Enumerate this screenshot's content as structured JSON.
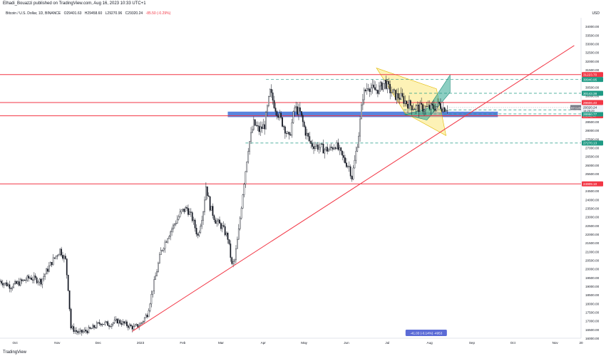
{
  "header": {
    "published_by": "Elhadi_Bouazzi published on TradingView.com, Aug 16, 2023 10:33 UTC+1",
    "symbol_title": "Bitcoin / U.S. Dollar, 1D, BINANCE",
    "o": "O29401.63",
    "h": "H29458.60",
    "l": "L29270.96",
    "c": "C29320.24",
    "chg": "-85.50 (-0.29%)",
    "currency": "USD"
  },
  "footer": {
    "logo_text": "TradingView"
  },
  "colors": {
    "up": "#089981",
    "down": "#f23645",
    "hline": "#f23645",
    "trend": "#f23645",
    "support_zone": "#3d6fd6",
    "flag_yellow": "#fbe77a",
    "flag_teal": "#3fae9a",
    "dash": "#1f9a84"
  },
  "chart_data": {
    "type": "candlestick",
    "symbol": "BTCUSD",
    "ylim": [
      16000,
      34500
    ],
    "y_ticks": [
      16000,
      16500,
      17000,
      17500,
      18000,
      18500,
      19000,
      19500,
      20000,
      20500,
      21000,
      21500,
      22000,
      22500,
      23000,
      23500,
      24000,
      24500,
      25000,
      25500,
      26000,
      26500,
      27000,
      27500,
      28000,
      28500,
      29000,
      29500,
      30000,
      30500,
      31000,
      31500,
      32000,
      32500,
      33000,
      33500,
      34000
    ],
    "x_labels": [
      {
        "label": "Oct",
        "day": 11
      },
      {
        "label": "Nov",
        "day": 42
      },
      {
        "label": "Dec",
        "day": 72
      },
      {
        "label": "2023",
        "day": 103
      },
      {
        "label": "Feb",
        "day": 134
      },
      {
        "label": "Mar",
        "day": 162
      },
      {
        "label": "Apr",
        "day": 193
      },
      {
        "label": "May",
        "day": 223
      },
      {
        "label": "Jun",
        "day": 254
      },
      {
        "label": "Jul",
        "day": 284
      },
      {
        "label": "Aug",
        "day": 315
      },
      {
        "label": "Sep",
        "day": 346
      },
      {
        "label": "Oct",
        "day": 376
      },
      {
        "label": "Nov",
        "day": 407
      },
      {
        "label": "20",
        "day": 426
      }
    ],
    "path_points": [
      [
        0,
        19300
      ],
      [
        8,
        19000
      ],
      [
        14,
        19200
      ],
      [
        22,
        19500
      ],
      [
        30,
        19300
      ],
      [
        38,
        20400
      ],
      [
        44,
        21100
      ],
      [
        48,
        20500
      ],
      [
        50,
        18900
      ],
      [
        52,
        16600
      ],
      [
        58,
        16300
      ],
      [
        66,
        16500
      ],
      [
        74,
        16900
      ],
      [
        80,
        16800
      ],
      [
        86,
        17000
      ],
      [
        92,
        16800
      ],
      [
        98,
        16600
      ],
      [
        103,
        16800
      ],
      [
        108,
        17400
      ],
      [
        113,
        19200
      ],
      [
        118,
        21000
      ],
      [
        123,
        21900
      ],
      [
        128,
        22600
      ],
      [
        133,
        23300
      ],
      [
        137,
        23500
      ],
      [
        141,
        22900
      ],
      [
        145,
        21900
      ],
      [
        149,
        23400
      ],
      [
        151,
        24800
      ],
      [
        154,
        23600
      ],
      [
        158,
        22800
      ],
      [
        163,
        22400
      ],
      [
        167,
        21800
      ],
      [
        170,
        20200
      ],
      [
        172,
        20500
      ],
      [
        175,
        22200
      ],
      [
        178,
        24400
      ],
      [
        182,
        27000
      ],
      [
        186,
        28400
      ],
      [
        190,
        28000
      ],
      [
        194,
        28300
      ],
      [
        198,
        30200
      ],
      [
        202,
        29300
      ],
      [
        206,
        28600
      ],
      [
        209,
        28100
      ],
      [
        212,
        27500
      ],
      [
        216,
        29300
      ],
      [
        220,
        29000
      ],
      [
        224,
        27900
      ],
      [
        228,
        27200
      ],
      [
        232,
        27100
      ],
      [
        238,
        26900
      ],
      [
        242,
        26900
      ],
      [
        246,
        27200
      ],
      [
        250,
        26600
      ],
      [
        253,
        26200
      ],
      [
        256,
        25900
      ],
      [
        258,
        25300
      ],
      [
        260,
        26200
      ],
      [
        263,
        27800
      ],
      [
        266,
        30000
      ],
      [
        270,
        30600
      ],
      [
        274,
        30300
      ],
      [
        278,
        30400
      ],
      [
        282,
        30800
      ],
      [
        286,
        30300
      ],
      [
        290,
        30000
      ],
      [
        294,
        29900
      ],
      [
        298,
        29600
      ],
      [
        302,
        29400
      ],
      [
        306,
        29300
      ],
      [
        310,
        29300
      ],
      [
        314,
        29300
      ],
      [
        318,
        29300
      ],
      [
        322,
        29500
      ],
      [
        325,
        29300
      ],
      [
        328,
        29320
      ]
    ],
    "horizontal_levels": [
      {
        "value": 31223.7,
        "label": "31223.70"
      },
      {
        "value": 29606.4,
        "label": "29606.40"
      },
      {
        "value": 28842.47,
        "label": "28842.47"
      },
      {
        "value": 24909.1,
        "label": "24909.10"
      }
    ],
    "dashed_levels": [
      {
        "value": 30940.95,
        "label": "30940.95",
        "from_day": 195
      },
      {
        "value": 30143.38,
        "label": "30143.38",
        "from_day": 300
      },
      {
        "value": 29185.28,
        "label": "29185.28",
        "from_day": 296
      },
      {
        "value": 28950.77,
        "label": "28950.77",
        "from_day": 296
      },
      {
        "value": 27270.13,
        "label": "27270.13",
        "from_day": 180
      }
    ],
    "support_zone": {
      "from": 28850,
      "to": 29000,
      "start_day": 167,
      "end_day": 365
    },
    "trendline": {
      "start": [
        97,
        16400
      ],
      "end": [
        421,
        32900
      ]
    },
    "flag_yellow": [
      [
        276,
        31600
      ],
      [
        320,
        30400
      ],
      [
        327,
        27700
      ],
      [
        297,
        29000
      ]
    ],
    "flag_teal": [
      [
        297,
        28900
      ],
      [
        314,
        29300
      ],
      [
        330,
        31200
      ],
      [
        330,
        30200
      ],
      [
        313,
        28600
      ]
    ],
    "current_price": {
      "value": 29320.24,
      "label": "29320.24",
      "symbol": "BTCUSD",
      "countdown": "14:26:29"
    },
    "measure_badge": "-41.03 (-0.14%) -4953",
    "measure_badge_day": 313
  }
}
